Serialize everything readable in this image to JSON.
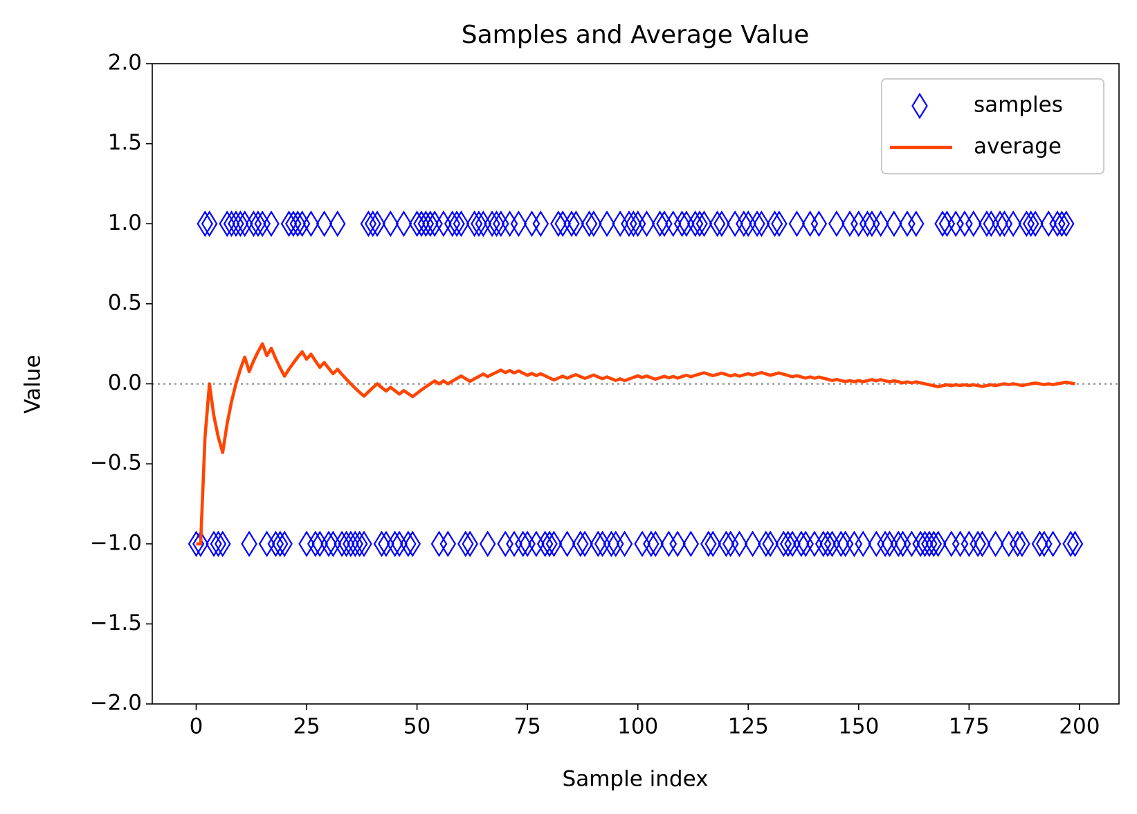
{
  "chart_data": {
    "type": "scatter",
    "title": "Samples and Average Value",
    "xlabel": "Sample index",
    "ylabel": "Value",
    "x": [
      0,
      1,
      2,
      3,
      4,
      5,
      6,
      7,
      8,
      9,
      10,
      11,
      12,
      13,
      14,
      15,
      16,
      17,
      18,
      19,
      20,
      21,
      22,
      23,
      24,
      25,
      26,
      27,
      28,
      29,
      30,
      31,
      32,
      33,
      34,
      35,
      36,
      37,
      38,
      39,
      40,
      41,
      42,
      43,
      44,
      45,
      46,
      47,
      48,
      49,
      50,
      51,
      52,
      53,
      54,
      55,
      56,
      57,
      58,
      59,
      60,
      61,
      62,
      63,
      64,
      65,
      66,
      67,
      68,
      69,
      70,
      71,
      72,
      73,
      74,
      75,
      76,
      77,
      78,
      79,
      80,
      81,
      82,
      83,
      84,
      85,
      86,
      87,
      88,
      89,
      90,
      91,
      92,
      93,
      94,
      95,
      96,
      97,
      98,
      99,
      100,
      101,
      102,
      103,
      104,
      105,
      106,
      107,
      108,
      109,
      110,
      111,
      112,
      113,
      114,
      115,
      116,
      117,
      118,
      119,
      120,
      121,
      122,
      123,
      124,
      125,
      126,
      127,
      128,
      129,
      130,
      131,
      132,
      133,
      134,
      135,
      136,
      137,
      138,
      139,
      140,
      141,
      142,
      143,
      144,
      145,
      146,
      147,
      148,
      149,
      150,
      151,
      152,
      153,
      154,
      155,
      156,
      157,
      158,
      159,
      160,
      161,
      162,
      163,
      164,
      165,
      166,
      167,
      168,
      169,
      170,
      171,
      172,
      173,
      174,
      175,
      176,
      177,
      178,
      179,
      180,
      181,
      182,
      183,
      184,
      185,
      186,
      187,
      188,
      189,
      190,
      191,
      192,
      193,
      194,
      195,
      196,
      197,
      198,
      199
    ],
    "series": [
      {
        "name": "samples",
        "type": "scatter",
        "marker": "diamond",
        "color": "#0000ff",
        "values": [
          -1,
          -1,
          1,
          1,
          -1,
          -1,
          -1,
          1,
          1,
          1,
          1,
          1,
          -1,
          1,
          1,
          1,
          -1,
          1,
          -1,
          -1,
          -1,
          1,
          1,
          1,
          1,
          -1,
          1,
          -1,
          -1,
          1,
          -1,
          -1,
          1,
          -1,
          -1,
          -1,
          -1,
          -1,
          -1,
          1,
          1,
          1,
          -1,
          -1,
          1,
          -1,
          -1,
          1,
          -1,
          -1,
          1,
          1,
          1,
          1,
          1,
          -1,
          1,
          -1,
          1,
          1,
          1,
          -1,
          -1,
          1,
          1,
          1,
          -1,
          1,
          1,
          1,
          -1,
          1,
          -1,
          1,
          -1,
          -1,
          1,
          -1,
          1,
          -1,
          -1,
          -1,
          1,
          1,
          -1,
          1,
          1,
          -1,
          -1,
          1,
          1,
          -1,
          -1,
          1,
          -1,
          -1,
          1,
          -1,
          1,
          1,
          1,
          -1,
          1,
          -1,
          -1,
          1,
          1,
          -1,
          1,
          -1,
          1,
          1,
          -1,
          1,
          1,
          1,
          -1,
          -1,
          1,
          1,
          -1,
          -1,
          1,
          -1,
          1,
          1,
          -1,
          1,
          1,
          -1,
          -1,
          1,
          1,
          -1,
          -1,
          -1,
          1,
          -1,
          -1,
          1,
          -1,
          1,
          -1,
          -1,
          -1,
          1,
          -1,
          -1,
          1,
          -1,
          1,
          -1,
          1,
          1,
          -1,
          1,
          -1,
          -1,
          1,
          -1,
          -1,
          1,
          -1,
          1,
          -1,
          -1,
          -1,
          -1,
          -1,
          1,
          1,
          -1,
          1,
          -1,
          1,
          -1,
          1,
          -1,
          -1,
          1,
          1,
          -1,
          1,
          1,
          -1,
          1,
          -1,
          -1,
          1,
          1,
          1,
          -1,
          -1,
          1,
          -1,
          1,
          1,
          1,
          -1,
          -1
        ]
      },
      {
        "name": "average",
        "type": "line",
        "color": "#ff4500",
        "values": [
          -1,
          -1,
          -0.333,
          0,
          -0.2,
          -0.333,
          -0.429,
          -0.25,
          -0.111,
          0,
          0.091,
          0.167,
          0.077,
          0.143,
          0.2,
          0.25,
          0.176,
          0.222,
          0.158,
          0.1,
          0.048,
          0.091,
          0.13,
          0.167,
          0.2,
          0.154,
          0.185,
          0.143,
          0.103,
          0.133,
          0.097,
          0.063,
          0.091,
          0.059,
          0.029,
          0,
          -0.027,
          -0.053,
          -0.077,
          -0.05,
          -0.024,
          0,
          -0.023,
          -0.045,
          -0.022,
          -0.043,
          -0.064,
          -0.042,
          -0.061,
          -0.08,
          -0.059,
          -0.038,
          -0.019,
          0,
          0.018,
          0,
          0.018,
          0,
          0.017,
          0.033,
          0.049,
          0.032,
          0.016,
          0.031,
          0.046,
          0.061,
          0.045,
          0.059,
          0.072,
          0.086,
          0.07,
          0.083,
          0.068,
          0.081,
          0.067,
          0.053,
          0.065,
          0.051,
          0.063,
          0.05,
          0.037,
          0.024,
          0.036,
          0.048,
          0.035,
          0.047,
          0.057,
          0.045,
          0.034,
          0.044,
          0.055,
          0.043,
          0.032,
          0.043,
          0.032,
          0.021,
          0.031,
          0.02,
          0.03,
          0.04,
          0.05,
          0.039,
          0.049,
          0.038,
          0.029,
          0.038,
          0.047,
          0.037,
          0.046,
          0.036,
          0.045,
          0.054,
          0.044,
          0.053,
          0.061,
          0.069,
          0.06,
          0.051,
          0.059,
          0.067,
          0.058,
          0.049,
          0.057,
          0.048,
          0.056,
          0.063,
          0.055,
          0.063,
          0.07,
          0.062,
          0.053,
          0.061,
          0.068,
          0.06,
          0.052,
          0.044,
          0.051,
          0.043,
          0.036,
          0.043,
          0.035,
          0.042,
          0.035,
          0.028,
          0.021,
          0.027,
          0.02,
          0.014,
          0.02,
          0.013,
          0.02,
          0.013,
          0.02,
          0.026,
          0.019,
          0.026,
          0.019,
          0.013,
          0.019,
          0.013,
          0.006,
          0.012,
          0.006,
          0.012,
          0.006,
          0,
          -0.006,
          -0.012,
          -0.018,
          -0.012,
          -0.006,
          -0.012,
          -0.006,
          -0.011,
          -0.006,
          -0.011,
          -0.006,
          -0.011,
          -0.017,
          -0.011,
          -0.006,
          -0.011,
          -0.005,
          0,
          -0.005,
          0,
          -0.005,
          -0.011,
          -0.005,
          0,
          0.005,
          0,
          -0.005,
          0,
          -0.005,
          0,
          0.005,
          0.01,
          0.005,
          0
        ]
      }
    ],
    "xlim": [
      -9.95,
      208.95
    ],
    "ylim": [
      -2,
      2
    ],
    "xticks": [
      0,
      25,
      50,
      75,
      100,
      125,
      150,
      175,
      200
    ],
    "yticks": [
      {
        "value": -2,
        "label": "−2.0"
      },
      {
        "value": -1.5,
        "label": "−1.5"
      },
      {
        "value": -1,
        "label": "−1.0"
      },
      {
        "value": -0.5,
        "label": "−0.5"
      },
      {
        "value": 0,
        "label": "0.0"
      },
      {
        "value": 0.5,
        "label": "0.5"
      },
      {
        "value": 1,
        "label": "1.0"
      },
      {
        "value": 1.5,
        "label": "1.5"
      },
      {
        "value": 2,
        "label": "2.0"
      }
    ],
    "hline": {
      "y": 0,
      "color": "#aaaaaa",
      "style": "dotted"
    },
    "legend": "upper right"
  }
}
